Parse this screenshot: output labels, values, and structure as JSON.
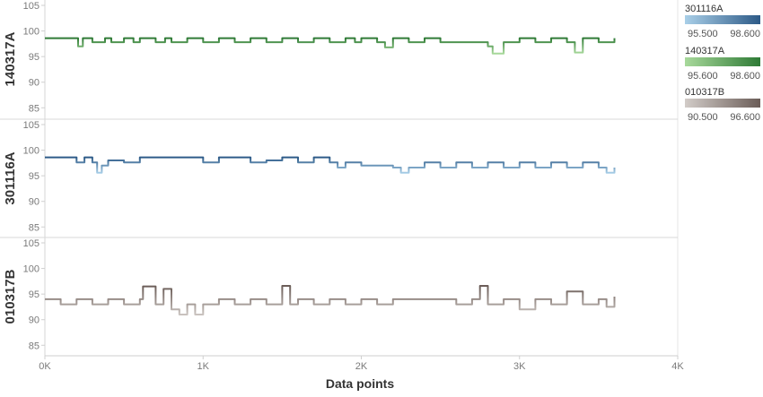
{
  "chart_data": {
    "type": "line",
    "xlabel": "Data points",
    "x_ticks": [
      {
        "value": 0,
        "label": "0K"
      },
      {
        "value": 1000,
        "label": "1K"
      },
      {
        "value": 2000,
        "label": "2K"
      },
      {
        "value": 3000,
        "label": "3K"
      },
      {
        "value": 4000,
        "label": "4K"
      }
    ],
    "xlim": [
      0,
      4000
    ],
    "ylim": [
      84,
      105
    ],
    "y_ticks": [
      85,
      90,
      95,
      100,
      105
    ],
    "grid": false,
    "legend_position": "right",
    "panels": [
      {
        "name": "140317A",
        "x": [
          0,
          200,
          210,
          240,
          300,
          380,
          420,
          500,
          560,
          600,
          700,
          760,
          800,
          900,
          1000,
          1100,
          1200,
          1300,
          1400,
          1500,
          1600,
          1700,
          1800,
          1900,
          1960,
          2000,
          2100,
          2150,
          2200,
          2300,
          2400,
          2500,
          2600,
          2700,
          2800,
          2830,
          2900,
          3000,
          3100,
          3200,
          3300,
          3350,
          3400,
          3500,
          3600
        ],
        "y": [
          98.6,
          98.6,
          97.0,
          98.6,
          97.8,
          98.6,
          97.8,
          98.6,
          97.8,
          98.6,
          97.8,
          98.6,
          97.8,
          98.6,
          97.8,
          98.6,
          97.8,
          98.6,
          97.8,
          98.6,
          97.8,
          98.6,
          97.8,
          98.6,
          97.8,
          98.6,
          97.8,
          96.8,
          98.6,
          97.8,
          98.6,
          97.8,
          97.8,
          97.8,
          97.0,
          95.6,
          97.8,
          98.6,
          97.8,
          98.6,
          97.8,
          95.8,
          98.6,
          97.8,
          98.6
        ],
        "color_range": [
          95.6,
          98.6
        ],
        "color_low": "#a8d99b",
        "color_high": "#2e7a35"
      },
      {
        "name": "301116A",
        "x": [
          0,
          100,
          200,
          250,
          300,
          330,
          360,
          400,
          500,
          600,
          700,
          800,
          900,
          1000,
          1100,
          1200,
          1300,
          1400,
          1500,
          1600,
          1700,
          1800,
          1850,
          1900,
          2000,
          2100,
          2200,
          2250,
          2300,
          2400,
          2500,
          2600,
          2700,
          2800,
          2900,
          3000,
          3100,
          3200,
          3300,
          3400,
          3500,
          3550,
          3600
        ],
        "y": [
          98.6,
          98.6,
          97.6,
          98.6,
          97.6,
          95.6,
          97.0,
          98.0,
          97.6,
          98.6,
          98.6,
          98.6,
          98.6,
          97.6,
          98.6,
          98.6,
          97.6,
          98.0,
          98.6,
          97.6,
          98.6,
          97.6,
          96.6,
          97.6,
          97.0,
          97.0,
          96.6,
          95.6,
          96.6,
          97.6,
          96.6,
          97.6,
          96.6,
          97.6,
          96.6,
          97.6,
          96.6,
          97.6,
          96.6,
          97.6,
          96.6,
          95.6,
          96.6
        ],
        "color_range": [
          95.5,
          98.6
        ],
        "color_low": "#a9cfe8",
        "color_high": "#2d5a87"
      },
      {
        "name": "010317B",
        "x": [
          0,
          100,
          200,
          300,
          400,
          500,
          600,
          620,
          700,
          750,
          800,
          850,
          900,
          950,
          1000,
          1100,
          1200,
          1300,
          1400,
          1500,
          1550,
          1600,
          1700,
          1800,
          1900,
          2000,
          2100,
          2200,
          2300,
          2400,
          2500,
          2600,
          2700,
          2750,
          2800,
          2900,
          3000,
          3100,
          3200,
          3300,
          3400,
          3500,
          3550,
          3600
        ],
        "y": [
          94.0,
          93.0,
          94.0,
          93.0,
          94.0,
          93.0,
          94.0,
          96.5,
          93.0,
          96.0,
          92.0,
          91.0,
          93.0,
          91.0,
          93.0,
          94.0,
          93.0,
          94.0,
          93.0,
          96.6,
          93.0,
          94.0,
          93.0,
          94.0,
          93.0,
          94.0,
          93.0,
          94.0,
          94.0,
          94.0,
          94.0,
          93.0,
          94.0,
          96.6,
          93.0,
          94.0,
          92.0,
          94.0,
          93.0,
          95.5,
          93.0,
          94.0,
          92.5,
          94.5
        ],
        "color_range": [
          90.5,
          96.6
        ],
        "color_low": "#d2ccc8",
        "color_high": "#6b5d58"
      }
    ],
    "legends": [
      {
        "title": "301116A",
        "min_label": "95.500",
        "max_label": "98.600",
        "color_low": "#a9cfe8",
        "color_high": "#2d5a87"
      },
      {
        "title": "140317A",
        "min_label": "95.600",
        "max_label": "98.600",
        "color_low": "#a8d99b",
        "color_high": "#2e7a35"
      },
      {
        "title": "010317B",
        "min_label": "90.500",
        "max_label": "96.600",
        "color_low": "#d2ccc8",
        "color_high": "#6b5d58"
      }
    ]
  }
}
